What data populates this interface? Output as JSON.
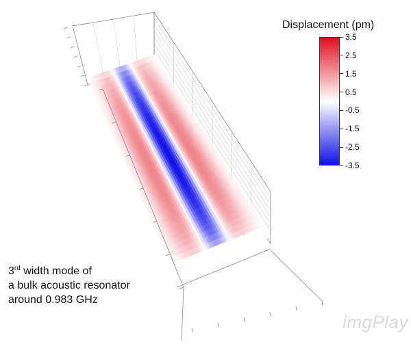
{
  "caption": {
    "ordinal_number": "3",
    "ordinal_suffix": "rd",
    "line1_rest": " width mode of",
    "line2": "a bulk acoustic resonator",
    "line3": "around 0.983 GHz"
  },
  "chart_data": {
    "type": "heatmap",
    "subtype": "3d-surface",
    "colorbar": {
      "title": "Displacement (pm)",
      "ticks": [
        "3.5",
        "2.5",
        "1.5",
        "0.5",
        "-0.5",
        "-1.5",
        "-2.5",
        "-3.5"
      ],
      "range": [
        -3.5,
        3.5
      ],
      "colormap": [
        "#1010e8",
        "#ffffff",
        "#e01020"
      ]
    },
    "surface": {
      "pattern": "3rd width mode",
      "band_profile": [
        0.1,
        0.9,
        -1.0,
        0.9,
        0.1
      ],
      "peak_negative": -3.5,
      "peak_positive": 2.0
    },
    "grid": true
  },
  "watermark": "imgPlay",
  "colors": {
    "negative": "#1010e8",
    "positive": "#e01020",
    "neutral": "#ffffff",
    "axis": "#888888"
  }
}
